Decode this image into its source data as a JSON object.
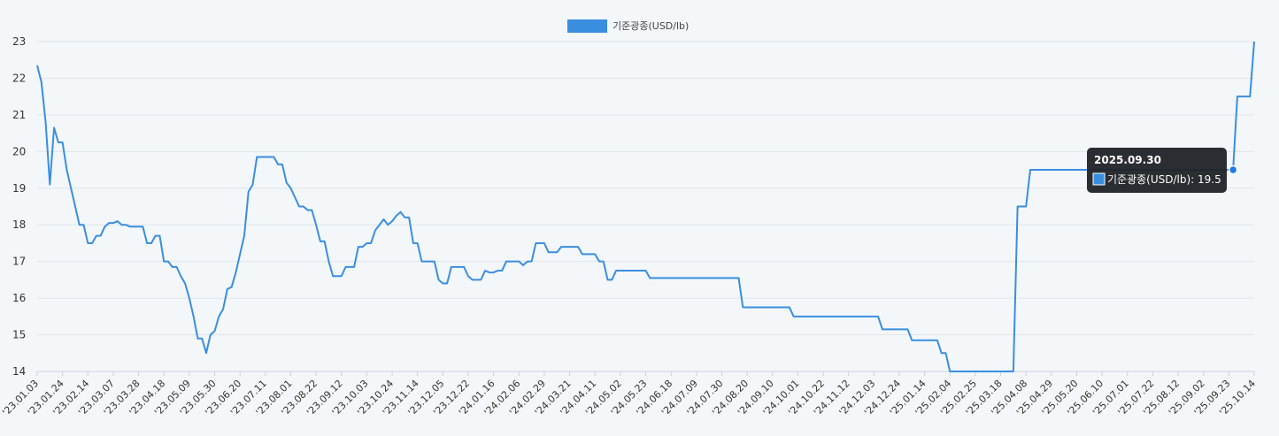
{
  "chart_data": {
    "type": "line",
    "title": "",
    "legend": {
      "position": "top-center",
      "label": "기준광종(USD/lb)"
    },
    "series": [
      {
        "name": "기준광종(USD/lb)",
        "color": "#3a8ee0",
        "values": [
          22.35,
          21.9,
          20.8,
          19.1,
          20.65,
          20.25,
          20.25,
          19.5,
          19.0,
          18.5,
          18.0,
          18.0,
          17.5,
          17.5,
          17.7,
          17.7,
          17.95,
          18.05,
          18.05,
          18.1,
          18.0,
          18.0,
          17.95,
          17.95,
          17.95,
          17.95,
          17.5,
          17.5,
          17.7,
          17.7,
          17.0,
          17.0,
          16.85,
          16.85,
          16.6,
          16.4,
          16.0,
          15.5,
          14.9,
          14.9,
          14.5,
          15.0,
          15.1,
          15.5,
          15.7,
          16.25,
          16.3,
          16.7,
          17.2,
          17.7,
          18.9,
          19.1,
          19.85,
          19.85,
          19.85,
          19.85,
          19.85,
          19.65,
          19.65,
          19.15,
          19.0,
          18.75,
          18.5,
          18.5,
          18.4,
          18.4,
          18.0,
          17.55,
          17.55,
          17.0,
          16.6,
          16.6,
          16.6,
          16.85,
          16.85,
          16.85,
          17.4,
          17.4,
          17.5,
          17.5,
          17.85,
          18.0,
          18.15,
          18.0,
          18.1,
          18.25,
          18.35,
          18.2,
          18.2,
          17.5,
          17.5,
          17.0,
          17.0,
          17.0,
          17.0,
          16.5,
          16.4,
          16.4,
          16.85,
          16.85,
          16.85,
          16.85,
          16.6,
          16.5,
          16.5,
          16.5,
          16.75,
          16.7,
          16.7,
          16.75,
          16.75,
          17.0,
          17.0,
          17.0,
          17.0,
          16.9,
          17.0,
          17.0,
          17.5,
          17.5,
          17.5,
          17.25,
          17.25,
          17.25,
          17.4,
          17.4,
          17.4,
          17.4,
          17.4,
          17.2,
          17.2,
          17.2,
          17.2,
          17.0,
          17.0,
          16.5,
          16.5,
          16.75,
          16.75,
          16.75,
          16.75,
          16.75,
          16.75,
          16.75,
          16.75,
          16.55,
          16.55,
          16.55,
          16.55,
          16.55,
          16.55,
          16.55,
          16.55,
          16.55,
          16.55,
          16.55,
          16.55,
          16.55,
          16.55,
          16.55,
          16.55,
          16.55,
          16.55,
          16.55,
          16.55,
          16.55,
          16.55,
          15.75,
          15.75,
          15.75,
          15.75,
          15.75,
          15.75,
          15.75,
          15.75,
          15.75,
          15.75,
          15.75,
          15.75,
          15.5,
          15.5,
          15.5,
          15.5,
          15.5,
          15.5,
          15.5,
          15.5,
          15.5,
          15.5,
          15.5,
          15.5,
          15.5,
          15.5,
          15.5,
          15.5,
          15.5,
          15.5,
          15.5,
          15.5,
          15.5,
          15.15,
          15.15,
          15.15,
          15.15,
          15.15,
          15.15,
          15.15,
          14.85,
          14.85,
          14.85,
          14.85,
          14.85,
          14.85,
          14.85,
          14.5,
          14.5,
          14.0,
          14.0,
          14.0,
          14.0,
          14.0,
          14.0,
          14.0,
          14.0,
          14.0,
          14.0,
          14.0,
          14.0,
          14.0,
          14.0,
          14.0,
          14.0,
          18.5,
          18.5,
          18.5,
          19.5,
          19.5,
          19.5,
          19.5,
          19.5,
          19.5,
          19.5,
          19.5,
          19.5,
          19.5,
          19.5,
          19.5,
          19.5,
          19.5,
          19.5,
          19.5,
          19.5,
          19.5,
          19.5,
          19.5,
          19.5,
          19.5,
          19.5,
          19.5,
          19.5,
          19.5,
          19.5,
          19.5,
          19.5,
          19.5,
          19.5,
          19.5,
          19.5,
          19.5,
          19.5,
          19.5,
          19.5,
          19.5,
          19.5,
          19.5,
          19.5,
          19.5,
          19.5,
          19.5,
          19.5,
          19.5,
          19.5,
          19.5,
          19.5,
          21.5,
          21.5,
          21.5,
          21.5,
          23.0
        ]
      }
    ],
    "x_ticks": [
      "'23.01.03",
      "'23.01.24",
      "'23.02.14",
      "'23.03.07",
      "'23.03.28",
      "'23.04.18",
      "'23.05.09",
      "'23.05.30",
      "'23.06.20",
      "'23.07.11",
      "'23.08.01",
      "'23.08.22",
      "'23.09.12",
      "'23.10.03",
      "'23.10.24",
      "'23.11.14",
      "'23.12.05",
      "'23.12.22",
      "'24.01.16",
      "'24.02.06",
      "'24.02.29",
      "'24.03.21",
      "'24.04.11",
      "'24.05.02",
      "'24.05.23",
      "'24.06.18",
      "'24.07.09",
      "'24.07.30",
      "'24.08.20",
      "'24.09.10",
      "'24.10.01",
      "'24.10.22",
      "'24.11.12",
      "'24.12.03",
      "'24.12.24",
      "'25.01.14",
      "'25.02.04",
      "'25.02.25",
      "'25.03.18",
      "'25.04.08",
      "'25.04.29",
      "'25.05.20",
      "'25.06.10",
      "'25.07.01",
      "'25.07.22",
      "'25.08.12",
      "'25.09.02",
      "'25.09.23",
      "'25.10.14"
    ],
    "y_ticks": [
      14,
      15,
      16,
      17,
      18,
      19,
      20,
      21,
      22,
      23
    ],
    "ylim": [
      14,
      23
    ],
    "grid": "horizontal",
    "tooltip": {
      "title": "2025.09.30",
      "label": "기준광종(USD/lb): 19.5",
      "value": 19.5
    }
  }
}
